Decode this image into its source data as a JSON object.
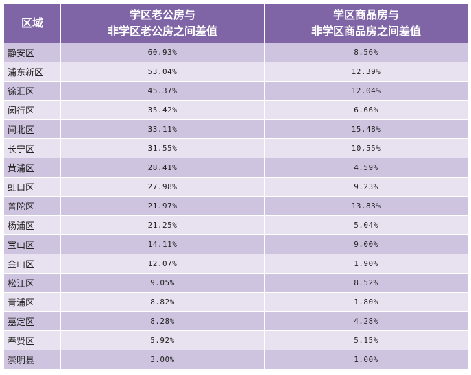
{
  "chart_data": {
    "type": "table",
    "header": {
      "region": "区域",
      "col1_line1": "学区老公房与",
      "col1_line2": "非学区老公房之间差值",
      "col2_line1": "学区商品房与",
      "col2_line2": "非学区商品房之间差值"
    },
    "rows": [
      {
        "region": "静安区",
        "old_housing_diff": "60.93%",
        "commercial_diff": "8.56%"
      },
      {
        "region": "浦东新区",
        "old_housing_diff": "53.04%",
        "commercial_diff": "12.39%"
      },
      {
        "region": "徐汇区",
        "old_housing_diff": "45.37%",
        "commercial_diff": "12.04%"
      },
      {
        "region": "闵行区",
        "old_housing_diff": "35.42%",
        "commercial_diff": "6.66%"
      },
      {
        "region": "闸北区",
        "old_housing_diff": "33.11%",
        "commercial_diff": "15.48%"
      },
      {
        "region": "长宁区",
        "old_housing_diff": "31.55%",
        "commercial_diff": "10.55%"
      },
      {
        "region": "黄浦区",
        "old_housing_diff": "28.41%",
        "commercial_diff": "4.59%"
      },
      {
        "region": "虹口区",
        "old_housing_diff": "27.98%",
        "commercial_diff": "9.23%"
      },
      {
        "region": "普陀区",
        "old_housing_diff": "21.97%",
        "commercial_diff": "13.83%"
      },
      {
        "region": "杨浦区",
        "old_housing_diff": "21.25%",
        "commercial_diff": "5.04%"
      },
      {
        "region": "宝山区",
        "old_housing_diff": "14.11%",
        "commercial_diff": "9.00%"
      },
      {
        "region": "金山区",
        "old_housing_diff": "12.07%",
        "commercial_diff": "1.90%"
      },
      {
        "region": "松江区",
        "old_housing_diff": "9.05%",
        "commercial_diff": "8.52%"
      },
      {
        "region": "青浦区",
        "old_housing_diff": "8.82%",
        "commercial_diff": "1.80%"
      },
      {
        "region": "嘉定区",
        "old_housing_diff": "8.28%",
        "commercial_diff": "4.28%"
      },
      {
        "region": "奉贤区",
        "old_housing_diff": "5.92%",
        "commercial_diff": "5.15%"
      },
      {
        "region": "崇明县",
        "old_housing_diff": "3.00%",
        "commercial_diff": "1.00%"
      }
    ]
  },
  "colors": {
    "header_bg": "#7f64a6",
    "header_text": "#ffffff",
    "row_dark": "#cfc4df",
    "row_light": "#e8e2f0",
    "grid_line": "#ffffff"
  }
}
